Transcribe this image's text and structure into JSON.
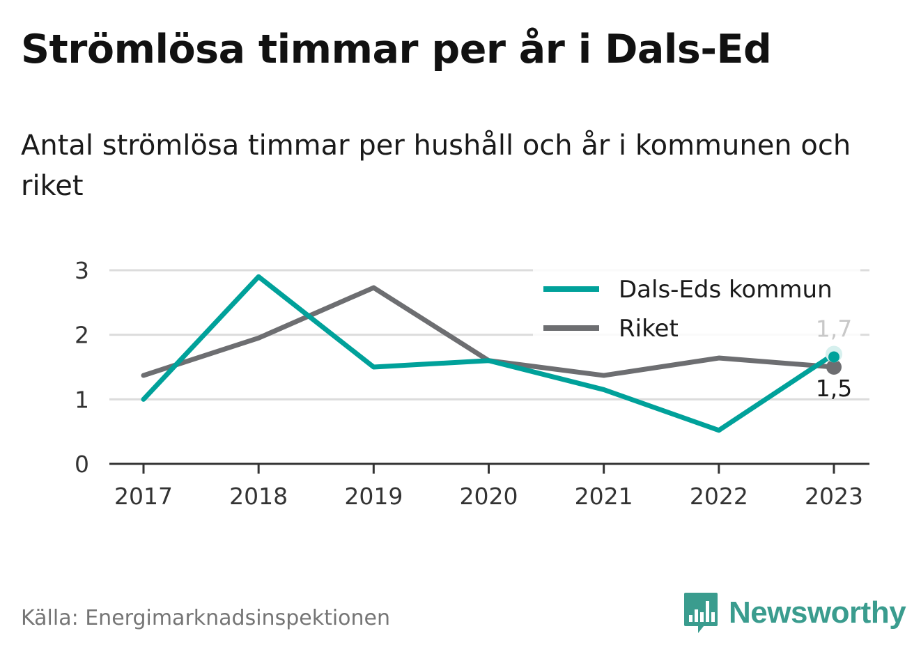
{
  "title": "Strömlösa timmar per år i Dals-Ed",
  "subtitle": "Antal strömlösa timmar per hushåll och år i kommunen och riket",
  "source": "Källa: Energimarknadsinspektionen",
  "brand": {
    "name": "Newsworthy",
    "icon": "newsworthy-logo-icon",
    "color": "#3a9c8e"
  },
  "chart_data": {
    "type": "line",
    "x": [
      "2017",
      "2018",
      "2019",
      "2020",
      "2021",
      "2022",
      "2023"
    ],
    "ylim": [
      0,
      3
    ],
    "yticks": [
      "0",
      "1",
      "2",
      "3"
    ],
    "grid": true,
    "legend_position": "top-right",
    "series": [
      {
        "name": "Dals-Eds kommun",
        "color": "#00a19a",
        "values": [
          1.0,
          2.9,
          1.5,
          1.6,
          1.15,
          0.52,
          1.7
        ],
        "end_label": "1,7"
      },
      {
        "name": "Riket",
        "color": "#6d6e71",
        "values": [
          1.37,
          1.95,
          2.73,
          1.6,
          1.37,
          1.64,
          1.5
        ],
        "end_label": "1,5"
      }
    ]
  }
}
